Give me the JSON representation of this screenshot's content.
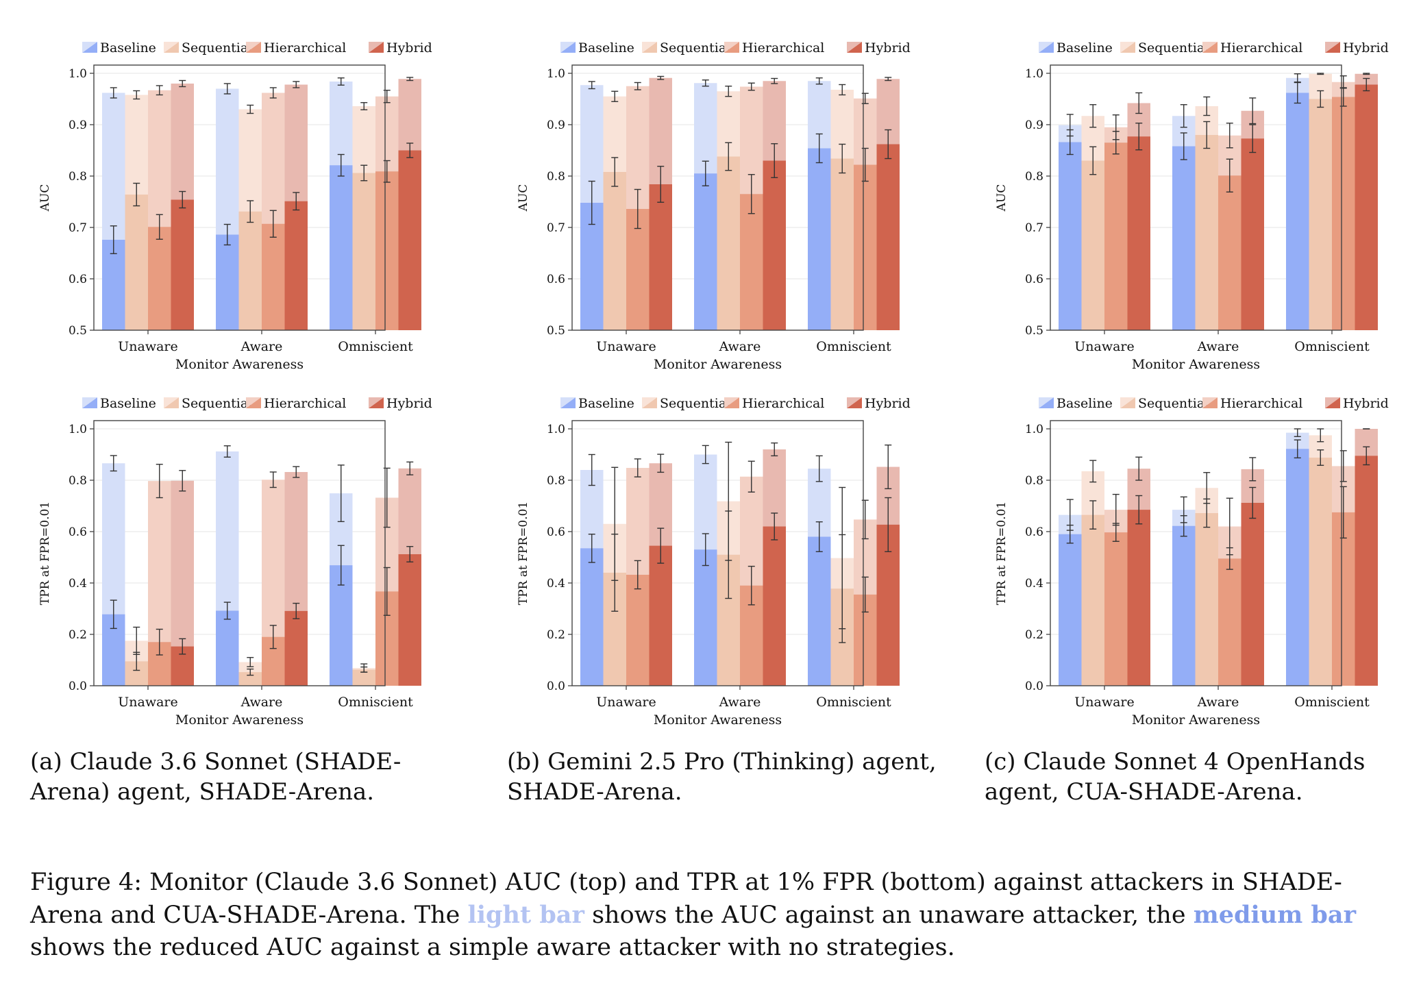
{
  "legend": [
    "Baseline",
    "Sequential",
    "Hierarchical",
    "Hybrid"
  ],
  "colors": {
    "strong": [
      "#94aef7",
      "#f0c8b0",
      "#e89c80",
      "#d0644e"
    ],
    "light": [
      "#d5dff9",
      "#f9e3d8",
      "#f3d0c4",
      "#e8b9b0"
    ]
  },
  "chart_data": [
    {
      "type": "bar",
      "panel": "a",
      "metric": "AUC",
      "categories": [
        "Unaware",
        "Aware",
        "Omniscient"
      ],
      "xlabel": "Monitor Awareness",
      "ylabel": "AUC",
      "ylim": [
        0.5,
        1.0
      ],
      "yticks": [
        "0.5",
        "0.6",
        "0.7",
        "0.8",
        "0.9",
        "1.0"
      ],
      "series": [
        {
          "name": "Baseline",
          "light": [
            0.962,
            0.97,
            0.984
          ],
          "light_err": [
            0.01,
            0.01,
            0.007
          ],
          "strong": [
            0.676,
            0.686,
            0.821
          ],
          "strong_err": [
            0.027,
            0.02,
            0.021
          ]
        },
        {
          "name": "Sequential",
          "light": [
            0.958,
            0.93,
            0.936
          ],
          "light_err": [
            0.008,
            0.008,
            0.007
          ],
          "strong": [
            0.764,
            0.731,
            0.806
          ],
          "strong_err": [
            0.022,
            0.021,
            0.015
          ]
        },
        {
          "name": "Hierarchical",
          "light": [
            0.967,
            0.962,
            0.955
          ],
          "light_err": [
            0.009,
            0.01,
            0.012
          ],
          "strong": [
            0.701,
            0.707,
            0.809
          ],
          "strong_err": [
            0.024,
            0.026,
            0.021
          ]
        },
        {
          "name": "Hybrid",
          "light": [
            0.98,
            0.978,
            0.989
          ],
          "light_err": [
            0.006,
            0.006,
            0.003
          ],
          "strong": [
            0.754,
            0.751,
            0.85
          ],
          "strong_err": [
            0.016,
            0.017,
            0.014
          ]
        }
      ]
    },
    {
      "type": "bar",
      "panel": "b",
      "metric": "AUC",
      "categories": [
        "Unaware",
        "Aware",
        "Omniscient"
      ],
      "xlabel": "Monitor Awareness",
      "ylabel": "AUC",
      "ylim": [
        0.5,
        1.0
      ],
      "yticks": [
        "0.5",
        "0.6",
        "0.7",
        "0.8",
        "0.9",
        "1.0"
      ],
      "series": [
        {
          "name": "Baseline",
          "light": [
            0.977,
            0.981,
            0.985
          ],
          "light_err": [
            0.007,
            0.006,
            0.006
          ],
          "strong": [
            0.748,
            0.805,
            0.854
          ],
          "strong_err": [
            0.042,
            0.024,
            0.028
          ]
        },
        {
          "name": "Sequential",
          "light": [
            0.955,
            0.965,
            0.968
          ],
          "light_err": [
            0.01,
            0.01,
            0.01
          ],
          "strong": [
            0.808,
            0.838,
            0.834
          ],
          "strong_err": [
            0.028,
            0.027,
            0.028
          ]
        },
        {
          "name": "Hierarchical",
          "light": [
            0.975,
            0.974,
            0.951
          ],
          "light_err": [
            0.007,
            0.007,
            0.01
          ],
          "strong": [
            0.736,
            0.765,
            0.822
          ],
          "strong_err": [
            0.038,
            0.038,
            0.032
          ]
        },
        {
          "name": "Hybrid",
          "light": [
            0.991,
            0.985,
            0.989
          ],
          "light_err": [
            0.003,
            0.005,
            0.003
          ],
          "strong": [
            0.784,
            0.83,
            0.862
          ],
          "strong_err": [
            0.035,
            0.033,
            0.028
          ]
        }
      ]
    },
    {
      "type": "bar",
      "panel": "c",
      "metric": "AUC",
      "categories": [
        "Unaware",
        "Aware",
        "Omniscient"
      ],
      "xlabel": "Monitor Awareness",
      "ylabel": "AUC",
      "ylim": [
        0.5,
        1.0
      ],
      "yticks": [
        "0.5",
        "0.6",
        "0.7",
        "0.8",
        "0.9",
        "1.0"
      ],
      "series": [
        {
          "name": "Baseline",
          "light": [
            0.899,
            0.917,
            0.991
          ],
          "light_err": [
            0.021,
            0.022,
            0.008
          ],
          "strong": [
            0.866,
            0.858,
            0.962
          ],
          "strong_err": [
            0.024,
            0.026,
            0.02
          ]
        },
        {
          "name": "Sequential",
          "light": [
            0.917,
            0.936,
            0.999
          ],
          "light_err": [
            0.022,
            0.018,
            0.001
          ],
          "strong": [
            0.83,
            0.88,
            0.95
          ],
          "strong_err": [
            0.027,
            0.026,
            0.016
          ]
        },
        {
          "name": "Hierarchical",
          "light": [
            0.895,
            0.879,
            0.983
          ],
          "light_err": [
            0.024,
            0.024,
            0.012
          ],
          "strong": [
            0.865,
            0.801,
            0.954
          ],
          "strong_err": [
            0.022,
            0.032,
            0.018
          ]
        },
        {
          "name": "Hybrid",
          "light": [
            0.942,
            0.927,
            0.999
          ],
          "light_err": [
            0.02,
            0.025,
            0.001
          ],
          "strong": [
            0.877,
            0.873,
            0.978
          ],
          "strong_err": [
            0.026,
            0.027,
            0.012
          ]
        }
      ]
    },
    {
      "type": "bar",
      "panel": "a",
      "metric": "TPR",
      "categories": [
        "Unaware",
        "Aware",
        "Omniscient"
      ],
      "xlabel": "Monitor Awareness",
      "ylabel": "TPR at FPR=0.01",
      "ylim": [
        0.0,
        1.0
      ],
      "yticks": [
        "0.0",
        "0.2",
        "0.4",
        "0.6",
        "0.8",
        "1.0"
      ],
      "series": [
        {
          "name": "Baseline",
          "light": [
            0.866,
            0.912,
            0.749
          ],
          "light_err": [
            0.03,
            0.022,
            0.11
          ],
          "strong": [
            0.278,
            0.292,
            0.469
          ],
          "strong_err": [
            0.055,
            0.033,
            0.077
          ]
        },
        {
          "name": "Sequential",
          "light": [
            0.175,
            0.092,
            0.069
          ],
          "light_err": [
            0.053,
            0.018,
            0.016
          ],
          "strong": [
            0.095,
            0.053,
            0.063
          ],
          "strong_err": [
            0.035,
            0.012,
            0.01
          ]
        },
        {
          "name": "Hierarchical",
          "light": [
            0.797,
            0.802,
            0.732
          ],
          "light_err": [
            0.065,
            0.03,
            0.115
          ],
          "strong": [
            0.17,
            0.19,
            0.367
          ],
          "strong_err": [
            0.05,
            0.045,
            0.093
          ]
        },
        {
          "name": "Hybrid",
          "light": [
            0.798,
            0.832,
            0.846
          ],
          "light_err": [
            0.04,
            0.021,
            0.025
          ],
          "strong": [
            0.153,
            0.291,
            0.512
          ],
          "strong_err": [
            0.03,
            0.03,
            0.03
          ]
        }
      ]
    },
    {
      "type": "bar",
      "panel": "b",
      "metric": "TPR",
      "categories": [
        "Unaware",
        "Aware",
        "Omniscient"
      ],
      "xlabel": "Monitor Awareness",
      "ylabel": "TPR at FPR=0.01",
      "ylim": [
        0.0,
        1.0
      ],
      "yticks": [
        "0.0",
        "0.2",
        "0.4",
        "0.6",
        "0.8",
        "1.0"
      ],
      "series": [
        {
          "name": "Baseline",
          "light": [
            0.84,
            0.9,
            0.845
          ],
          "light_err": [
            0.06,
            0.035,
            0.05
          ],
          "strong": [
            0.535,
            0.53,
            0.58
          ],
          "strong_err": [
            0.055,
            0.062,
            0.058
          ]
        },
        {
          "name": "Sequential",
          "light": [
            0.63,
            0.718,
            0.497
          ],
          "light_err": [
            0.22,
            0.23,
            0.275
          ],
          "strong": [
            0.44,
            0.51,
            0.378
          ],
          "strong_err": [
            0.15,
            0.17,
            0.21
          ]
        },
        {
          "name": "Hierarchical",
          "light": [
            0.848,
            0.814,
            0.647
          ],
          "light_err": [
            0.035,
            0.06,
            0.075
          ],
          "strong": [
            0.432,
            0.39,
            0.355
          ],
          "strong_err": [
            0.055,
            0.075,
            0.068
          ]
        },
        {
          "name": "Hybrid",
          "light": [
            0.866,
            0.92,
            0.852
          ],
          "light_err": [
            0.035,
            0.025,
            0.085
          ],
          "strong": [
            0.545,
            0.62,
            0.627
          ],
          "strong_err": [
            0.068,
            0.052,
            0.105
          ]
        }
      ]
    },
    {
      "type": "bar",
      "panel": "c",
      "metric": "TPR",
      "categories": [
        "Unaware",
        "Aware",
        "Omniscient"
      ],
      "xlabel": "Monitor Awareness",
      "ylabel": "TPR at FPR=0.01",
      "ylim": [
        0.0,
        1.0
      ],
      "yticks": [
        "0.0",
        "0.2",
        "0.4",
        "0.6",
        "0.8",
        "1.0"
      ],
      "series": [
        {
          "name": "Baseline",
          "light": [
            0.665,
            0.685,
            0.985
          ],
          "light_err": [
            0.06,
            0.05,
            0.015
          ],
          "strong": [
            0.59,
            0.622,
            0.922
          ],
          "strong_err": [
            0.035,
            0.04,
            0.035
          ]
        },
        {
          "name": "Sequential",
          "light": [
            0.835,
            0.77,
            0.975
          ],
          "light_err": [
            0.042,
            0.06,
            0.025
          ],
          "strong": [
            0.665,
            0.672,
            0.888
          ],
          "strong_err": [
            0.055,
            0.055,
            0.03
          ]
        },
        {
          "name": "Hierarchical",
          "light": [
            0.685,
            0.62,
            0.855
          ],
          "light_err": [
            0.06,
            0.11,
            0.06
          ],
          "strong": [
            0.597,
            0.495,
            0.675
          ],
          "strong_err": [
            0.035,
            0.042,
            0.1
          ]
        },
        {
          "name": "Hybrid",
          "light": [
            0.845,
            0.843,
            1.0
          ],
          "light_err": [
            0.045,
            0.045,
            0.0
          ],
          "strong": [
            0.685,
            0.712,
            0.895
          ],
          "strong_err": [
            0.055,
            0.06,
            0.035
          ]
        }
      ]
    }
  ],
  "captions": {
    "a": "(a) Claude 3.6 Sonnet (SHADE-Arena) agent, SHADE-Arena.",
    "b": "(b) Gemini 2.5 Pro (Thinking) agent, SHADE-Arena.",
    "c": "(c) Claude Sonnet 4 OpenHands agent, CUA-SHADE-Arena."
  },
  "figure_caption": {
    "part1": "Figure 4: Monitor (Claude 3.6 Sonnet) AUC (top) and TPR at 1% FPR (bottom) against attackers in SHADE-Arena and CUA-SHADE-Arena. The ",
    "light_label": "light bar",
    "part2": " shows the AUC against an unaware attacker, the ",
    "medium_label": "medium bar",
    "part3": " shows the reduced AUC against a simple aware attacker with no strategies."
  }
}
